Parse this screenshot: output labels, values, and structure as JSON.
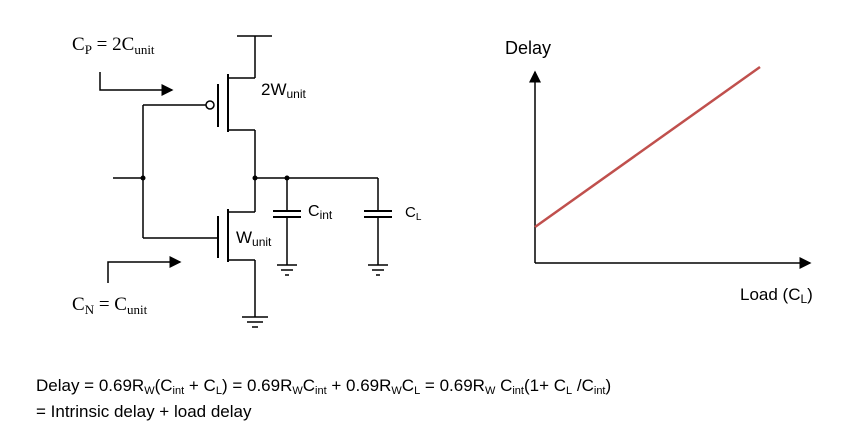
{
  "labels": {
    "cp": {
      "main": "C",
      "sub": "P",
      "eq": " = 2C",
      "tail": "unit"
    },
    "cn": {
      "main": "C",
      "sub": "N",
      "eq": " = C",
      "tail": "unit"
    },
    "pmos": {
      "main": "2W",
      "sub": "unit"
    },
    "nmos": {
      "main": "W",
      "sub": "unit"
    },
    "cint": {
      "main": "C",
      "sub": "int"
    },
    "cl": {
      "main": "C",
      "sub": "L"
    }
  },
  "chart": {
    "ylabel": "Delay",
    "xlabel": "Load (C",
    "xlabel_sub": "L",
    "xlabel_tail": ")",
    "line_color": "#c0504d"
  },
  "chart_data": {
    "type": "line",
    "title": "",
    "xlabel": "Load (CL)",
    "ylabel": "Delay",
    "series": [
      {
        "x": [
          0,
          1
        ],
        "y": [
          0.27,
          1.0
        ]
      }
    ]
  },
  "formula": {
    "line1": [
      {
        "t": "Delay = 0.69R"
      },
      {
        "s": "W"
      },
      {
        "t": "(C"
      },
      {
        "s": "int"
      },
      {
        "t": " + C"
      },
      {
        "s": "L"
      },
      {
        "t": ") = 0.69R"
      },
      {
        "s": "W"
      },
      {
        "t": "C"
      },
      {
        "s": "int"
      },
      {
        "t": " + 0.69R"
      },
      {
        "s": "W"
      },
      {
        "t": "C"
      },
      {
        "s": "L"
      },
      {
        "t": " = 0.69R"
      },
      {
        "s": "W"
      },
      {
        "t": " C"
      },
      {
        "s": "int"
      },
      {
        "t": "(1+ C"
      },
      {
        "s": "L"
      },
      {
        "t": " /C"
      },
      {
        "s": "int"
      },
      {
        "t": ")"
      }
    ],
    "line2": "= Intrinsic delay + load delay"
  }
}
